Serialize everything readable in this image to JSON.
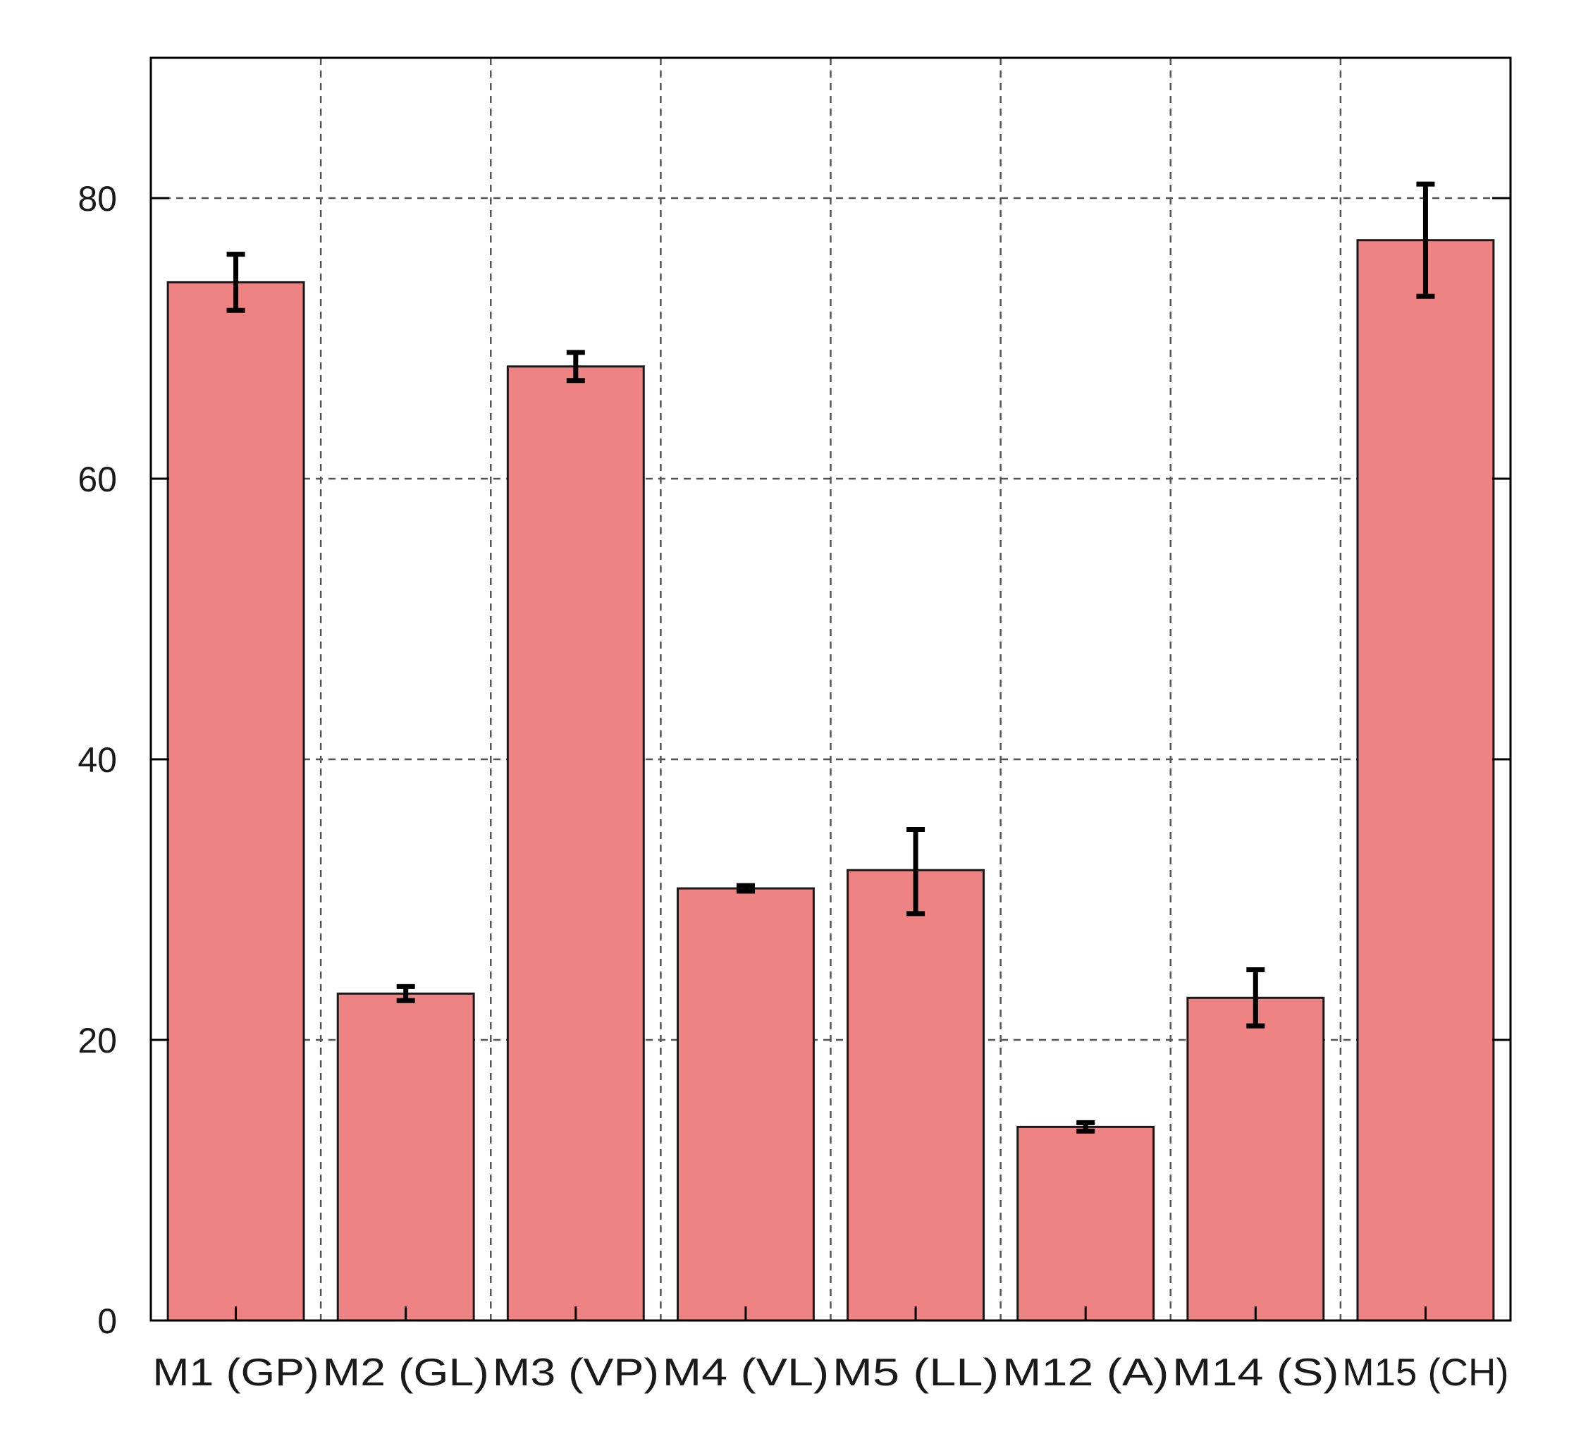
{
  "chart_data": {
    "type": "bar",
    "title": "",
    "xlabel": "",
    "ylabel": "",
    "categories": [
      "M1 (GP)",
      "M2 (GL)",
      "M3 (VP)",
      "M4 (VL)",
      "M5 (LL)",
      "M12 (A)",
      "M14 (S)",
      "M15 (CH)"
    ],
    "values": [
      74,
      23.3,
      68,
      30.8,
      32.1,
      13.8,
      23,
      77
    ],
    "error_low": [
      72,
      22.8,
      67,
      30.6,
      29,
      13.5,
      21,
      73
    ],
    "error_high": [
      76,
      23.8,
      69,
      31,
      35,
      14.1,
      25,
      81
    ],
    "ylim": [
      0,
      90
    ],
    "yticks": [
      "0",
      "20",
      "40",
      "60",
      "80"
    ],
    "grid": true,
    "colors": {
      "bar_fill": "#ee8383",
      "bar_stroke": "#1a1a1a",
      "error_bar": "#000000",
      "grid": "#555555"
    }
  }
}
